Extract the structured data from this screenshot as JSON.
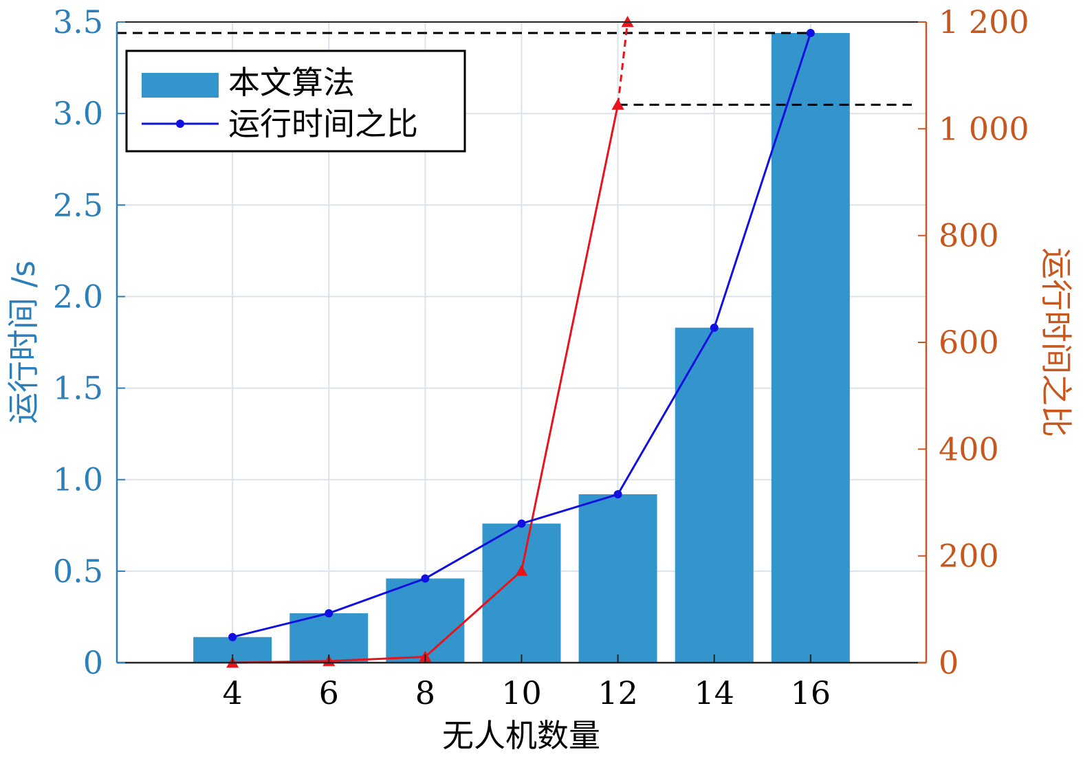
{
  "chart_data": {
    "type": "bar",
    "x_label": "无人机数量",
    "y_left_label": "运行时间 /s",
    "y_right_label": "运行时间之比",
    "categories": [
      "4",
      "6",
      "8",
      "10",
      "12",
      "14",
      "16"
    ],
    "x_values": [
      4,
      6,
      8,
      10,
      12,
      14,
      16
    ],
    "xlim": [
      1.6,
      18.4
    ],
    "y_left_lim": [
      0,
      3.5
    ],
    "y_left_ticks": [
      "0",
      "0.5",
      "1.0",
      "1.5",
      "2.0",
      "2.5",
      "3.0",
      "3.5"
    ],
    "y_right_lim": [
      0,
      1200
    ],
    "y_right_ticks": [
      "0",
      "200",
      "400",
      "600",
      "800",
      "1 000",
      "1 200"
    ],
    "grid": true,
    "legend_position": "top-left",
    "series": [
      {
        "name": "本文算法",
        "kind": "bar",
        "axis": "left",
        "color": "#3395cb",
        "values": [
          0.14,
          0.27,
          0.46,
          0.76,
          0.92,
          1.83,
          3.44
        ]
      },
      {
        "name": "运行时间之比",
        "kind": "line",
        "axis": "left",
        "color": "#1010e0",
        "marker": "circle",
        "values": [
          0.14,
          0.27,
          0.46,
          0.76,
          0.92,
          1.83,
          3.44
        ]
      },
      {
        "kind": "line",
        "axis": "right",
        "color": "#e8141c",
        "marker": "triangle",
        "x": [
          4,
          6,
          8,
          10,
          12
        ],
        "values": [
          0,
          3,
          11,
          172,
          1045
        ]
      },
      {
        "kind": "line-dashed",
        "axis": "right",
        "color": "#e8141c",
        "marker": "triangle",
        "x": [
          12,
          12.2
        ],
        "values": [
          1045,
          1200
        ]
      }
    ],
    "reference_lines": [
      {
        "axis": "left",
        "y": 3.44,
        "x_from": 1.6,
        "x_to": 16,
        "style": "dashed",
        "color": "#000000"
      },
      {
        "axis": "right",
        "y": 1045,
        "x_from": 12,
        "x_to": 18.1,
        "style": "dashed",
        "color": "#000000"
      }
    ]
  }
}
